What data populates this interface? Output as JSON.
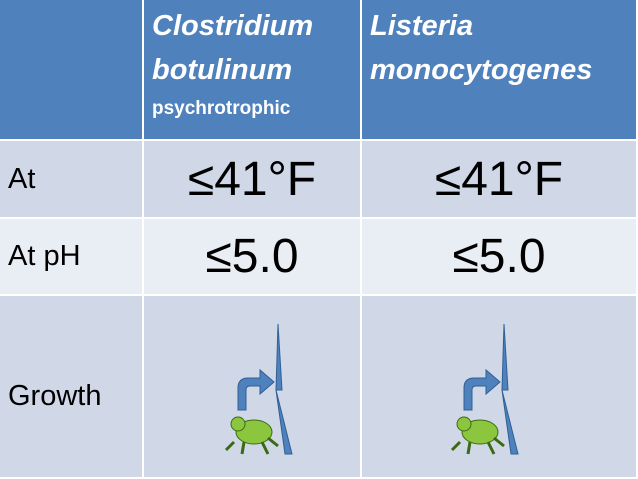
{
  "table": {
    "columns": [
      {
        "name": [
          "Clostridium",
          "botulinum"
        ],
        "note": "psychrotrophic"
      },
      {
        "name": [
          "Listeria",
          "monocytogenes"
        ]
      }
    ],
    "rows": [
      {
        "label": "At",
        "cells": [
          "≤41°F",
          "≤41°F"
        ]
      },
      {
        "label": "At pH",
        "cells": [
          "≤5.0",
          "≤5.0"
        ]
      },
      {
        "label": "Growth"
      }
    ]
  }
}
